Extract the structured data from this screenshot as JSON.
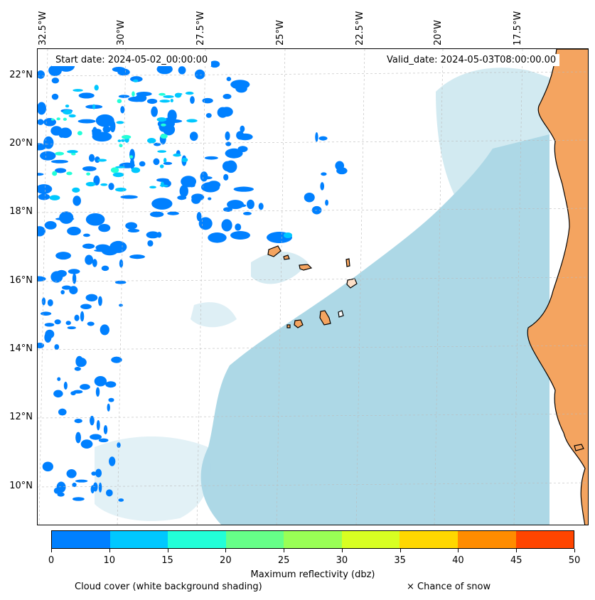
{
  "map": {
    "start_date": "Start date: 2024-05-02_00:00:00",
    "valid_date": "Valid_date: 2024-05-03T08:00:00.00",
    "lon_labels": [
      "32.5°W",
      "30°W",
      "27.5°W",
      "25°W",
      "22.5°W",
      "20°W",
      "17.5°W"
    ],
    "lat_labels": [
      "22°N",
      "20°N",
      "18°N",
      "16°N",
      "14°N",
      "12°N",
      "10°N"
    ],
    "land_color": "#f4a460",
    "cloud_color": "#add8e6",
    "ocean_color": "#ffffff"
  },
  "colorbar": {
    "colors": [
      "#0080ff",
      "#00c8ff",
      "#22ffd8",
      "#66ff88",
      "#99ff55",
      "#d8ff22",
      "#ffd700",
      "#ff8c00",
      "#ff4500"
    ],
    "ticks": [
      "0",
      "10",
      "15",
      "20",
      "25",
      "30",
      "35",
      "40",
      "45",
      "50"
    ],
    "label": "Maximum reflectivity (dbz)"
  },
  "legend": {
    "cloud_cover": "Cloud cover (white background shading)",
    "snow": "× Chance of snow"
  }
}
